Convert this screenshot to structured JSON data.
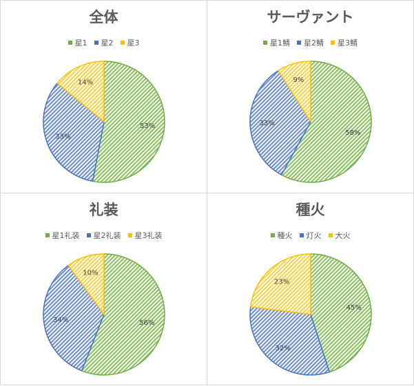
{
  "colors": {
    "green": "#70ad47",
    "blue": "#4472c4",
    "yellow": "#ffc000",
    "stripe_green": "#8cc262",
    "stripe_blue": "#6e8fd1",
    "stripe_yellow": "#ffd24d"
  },
  "chart_data": [
    {
      "type": "pie",
      "title": "全体",
      "categories": [
        "星1",
        "星2",
        "星3"
      ],
      "values": [
        53,
        33,
        14
      ],
      "labels": [
        "53%",
        "33%",
        "14%"
      ],
      "colors": [
        "green",
        "blue",
        "yellow"
      ],
      "legend_position": "top"
    },
    {
      "type": "pie",
      "title": "サーヴァント",
      "categories": [
        "星1鯖",
        "星2鯖",
        "星3鯖"
      ],
      "values": [
        58,
        33,
        9
      ],
      "labels": [
        "58%",
        "33%",
        "9%"
      ],
      "colors": [
        "green",
        "blue",
        "yellow"
      ],
      "legend_position": "top"
    },
    {
      "type": "pie",
      "title": "礼装",
      "categories": [
        "星1礼装",
        "星2礼装",
        "星3礼装"
      ],
      "values": [
        56,
        34,
        10
      ],
      "labels": [
        "56%",
        "34%",
        "10%"
      ],
      "colors": [
        "green",
        "blue",
        "yellow"
      ],
      "legend_position": "top"
    },
    {
      "type": "pie",
      "title": "種火",
      "categories": [
        "種火",
        "灯火",
        "大火"
      ],
      "values": [
        45,
        32,
        23
      ],
      "labels": [
        "45%",
        "32%",
        "23%"
      ],
      "colors": [
        "green",
        "blue",
        "yellow"
      ],
      "legend_position": "top"
    }
  ]
}
